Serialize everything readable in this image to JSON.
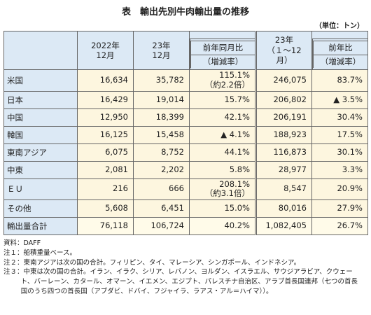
{
  "header": {
    "title": "表　輸出先別牛肉輸出量の推移",
    "unit": "（単位：トン）"
  },
  "table": {
    "columns": [
      [
        "2022年",
        "12月"
      ],
      [
        "23年",
        "12月"
      ],
      [
        "前年同月比",
        "（増減率）"
      ],
      [
        "23年",
        "（１～12月）"
      ],
      [
        "前年比",
        "（増減率）"
      ]
    ],
    "rows": [
      {
        "label": "米国",
        "cells": [
          "16,634",
          "35,782",
          [
            "115.1%",
            "（約2.2倍）"
          ],
          "246,075",
          "83.7%"
        ]
      },
      {
        "label": "日本",
        "cells": [
          "16,429",
          "19,014",
          "15.7%",
          "206,802",
          "▲ 3.5%"
        ]
      },
      {
        "label": "中国",
        "cells": [
          "12,950",
          "18,399",
          "42.1%",
          "206,191",
          "30.4%"
        ]
      },
      {
        "label": "韓国",
        "cells": [
          "16,125",
          "15,458",
          "▲ 4.1%",
          "188,923",
          "17.5%"
        ]
      },
      {
        "label": "東南アジア",
        "cells": [
          "6,075",
          "8,752",
          "44.1%",
          "116,873",
          "30.1%"
        ]
      },
      {
        "label": "中東",
        "cells": [
          "2,081",
          "2,202",
          "5.8%",
          "28,977",
          "3.3%"
        ]
      },
      {
        "label": "ＥＵ",
        "cells": [
          "216",
          "666",
          [
            "208.1%",
            "（約3.1倍）"
          ],
          "8,547",
          "20.9%"
        ]
      },
      {
        "label": "その他",
        "cells": [
          "5,608",
          "6,451",
          "15.0%",
          "80,016",
          "27.9%"
        ]
      },
      {
        "label": "輸出量合計",
        "cells": [
          "76,118",
          "106,724",
          "40.2%",
          "1,082,405",
          "26.7%"
        ]
      }
    ]
  },
  "notes": [
    "資料：DAFF",
    "注１：船積重量ベース。",
    "注２：東南アジアは次の国の合計。フィリピン、タイ、マレーシア、シンガポール、インドネシア。",
    "注３：中東は次の国の合計。イラン、イラク、シリア、レバノン、ヨルダン、イスラエル、サウジアラビア、クウェート、バーレーン、カタール、オマーン、イエメン、エジプト、パレスチナ自治区、アラブ首長国連邦（七つの首長国のうち四つの首長国（アブダビ、ドバイ、フジャイラ、ラアス・アル＝ハイマ））。"
  ]
}
